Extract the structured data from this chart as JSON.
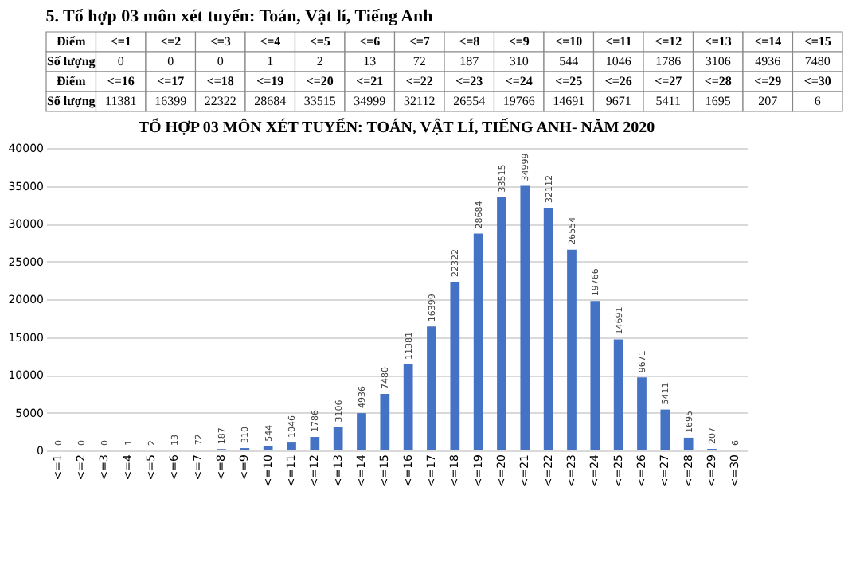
{
  "chart_data": [
    {
      "type": "other",
      "title": "5. Tổ hợp 03 môn xét tuyển: Toán, Vật lí, Tiếng Anh",
      "annotations": [
        "Điểm",
        "<=1",
        "<=2",
        "<=3",
        "<=4",
        "<=5",
        "<=6",
        "<=7",
        "<=8",
        "<=9",
        "<=10",
        "<=11",
        "<=12",
        "<=13",
        "<=14",
        "<=15",
        "Số lượng",
        "0",
        "0",
        "0",
        "1",
        "2",
        "13",
        "72",
        "187",
        "310",
        "544",
        "1046",
        "1786",
        "3106",
        "4936",
        "7480",
        "Điểm",
        "<=16",
        "<=17",
        "<=18",
        "<=19",
        "<=20",
        "<=21",
        "<=22",
        "<=23",
        "<=24",
        "<=25",
        "<=26",
        "<=27",
        "<=28",
        "<=29",
        "<=30",
        "Số lượng",
        "11381",
        "16399",
        "22322",
        "28684",
        "33515",
        "34999",
        "32112",
        "26554",
        "19766",
        "14691",
        "9671",
        "5411",
        "1695",
        "207",
        "6"
      ]
    },
    {
      "type": "bar",
      "title": "TỔ HỢP 03 MÔN XÉT TUYỂN: TOÁN, VẬT LÍ, TIẾNG ANH- NĂM 2020",
      "categories": [
        "<=1",
        "<=2",
        "<=3",
        "<=4",
        "<=5",
        "<=6",
        "<=7",
        "<=8",
        "<=9",
        "<=10",
        "<=11",
        "<=12",
        "<=13",
        "<=14",
        "<=15",
        "<=16",
        "<=17",
        "<=18",
        "<=19",
        "<=20",
        "<=21",
        "<=22",
        "<=23",
        "<=24",
        "<=25",
        "<=26",
        "<=27",
        "<=28",
        "<=29",
        "<=30"
      ],
      "values": [
        0,
        0,
        0,
        1,
        2,
        13,
        72,
        187,
        310,
        544,
        1046,
        1786,
        3106,
        4936,
        7480,
        11381,
        16399,
        22322,
        28684,
        33515,
        34999,
        32112,
        26554,
        19766,
        14691,
        9671,
        5411,
        1695,
        207,
        6
      ],
      "color": "#4472c4",
      "ylim": [
        0,
        40000
      ],
      "yticks": [
        0,
        5000,
        10000,
        15000,
        20000,
        25000,
        30000,
        35000,
        40000
      ],
      "grid": "y",
      "data_labels": true
    }
  ]
}
